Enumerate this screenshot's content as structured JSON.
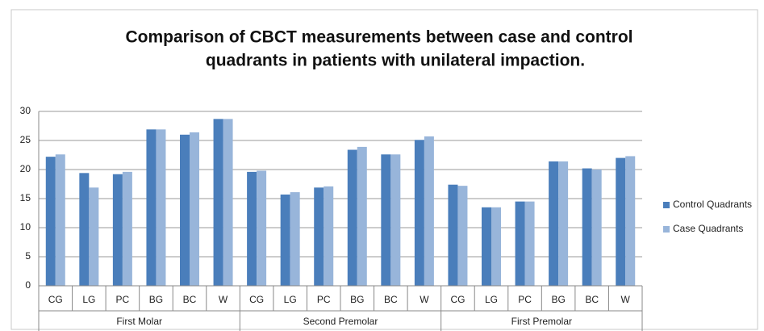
{
  "chart_data": {
    "type": "bar",
    "title": [
      "Comparison of CBCT measurements between case and control",
      "quadrants in patients with unilateral impaction."
    ],
    "categories": [
      "CG",
      "LG",
      "PC",
      "BG",
      "BC",
      "W",
      "CG",
      "LG",
      "PC",
      "BG",
      "BC",
      "W",
      "CG",
      "LG",
      "PC",
      "BG",
      "BC",
      "W"
    ],
    "groups": [
      "First Molar",
      "Second Premolar",
      "First Premolar"
    ],
    "series": [
      {
        "name": "Control Quadrants",
        "color": "#4a7ebb",
        "values": [
          22.2,
          19.4,
          19.2,
          26.9,
          26.0,
          28.7,
          19.6,
          15.7,
          16.9,
          23.4,
          22.6,
          25.1,
          17.4,
          13.5,
          14.5,
          21.4,
          20.2,
          22.0
        ]
      },
      {
        "name": "Case Quadrants",
        "color": "#98b5da",
        "values": [
          22.6,
          16.9,
          19.6,
          26.9,
          26.4,
          28.7,
          19.8,
          16.1,
          17.1,
          23.9,
          22.6,
          25.7,
          17.2,
          13.5,
          14.5,
          21.4,
          20.0,
          22.3
        ]
      }
    ],
    "ylim": [
      0,
      30
    ],
    "yticks": [
      0,
      5,
      10,
      15,
      20,
      25,
      30
    ],
    "grid": true,
    "legend": "right"
  }
}
